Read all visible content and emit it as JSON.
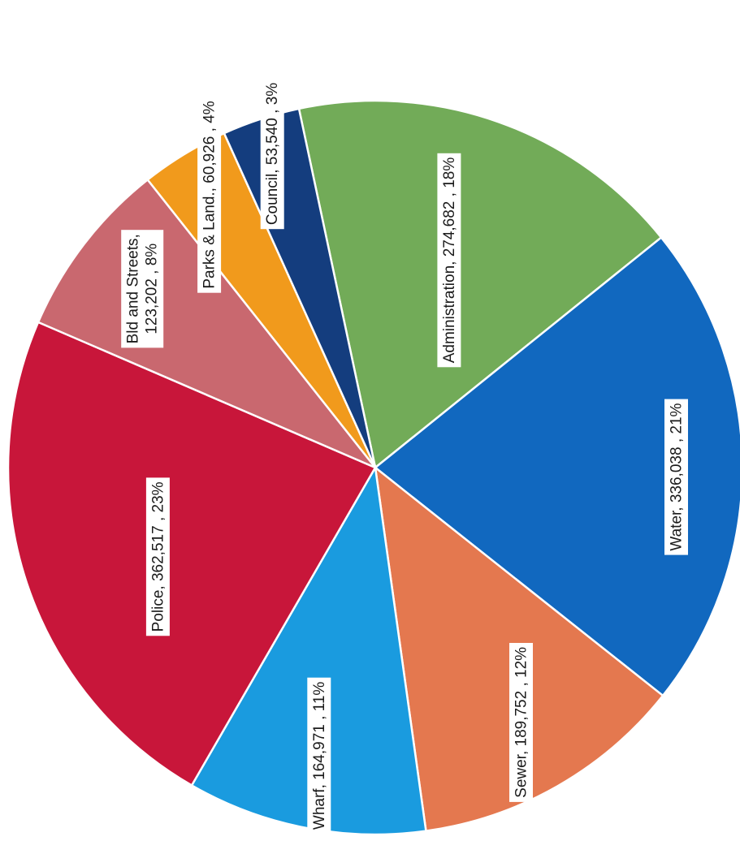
{
  "chart_data": {
    "type": "pie",
    "rotation": "rotated 90 degrees clockwise",
    "slices": [
      {
        "name": "Administration",
        "value": 274682,
        "percent": "18%",
        "label": "Administration, 274,682 , 18%",
        "color": "#72ab58"
      },
      {
        "name": "Water",
        "value": 336038,
        "percent": "21%",
        "label": "Water, 336,038 , 21%",
        "color": "#1168bf"
      },
      {
        "name": "Sewer",
        "value": 189752,
        "percent": "12%",
        "label": "Sewer, 189,752 , 12%",
        "color": "#e4784f"
      },
      {
        "name": "Wharf",
        "value": 164971,
        "percent": "11%",
        "label": "Wharf, 164,971 , 11%",
        "color": "#1a9bdf"
      },
      {
        "name": "Police",
        "value": 362517,
        "percent": "23%",
        "label": "Police, 362,517 , 23%",
        "color": "#c8163a"
      },
      {
        "name": "Bld and Streets",
        "value": 123202,
        "percent": "8%",
        "label_lines": [
          "Bld and Streets,",
          "123,202 , 8%"
        ],
        "color": "#c9686f"
      },
      {
        "name": "Parks & Land",
        "value": 60926,
        "percent": "4%",
        "label": "Parks & Land., 60,926 , 4%",
        "color": "#f19a1c"
      },
      {
        "name": "Council",
        "value": 53540,
        "percent": "3%",
        "label": "Council, 53,540 , 3%",
        "color": "#143d7e"
      }
    ]
  }
}
